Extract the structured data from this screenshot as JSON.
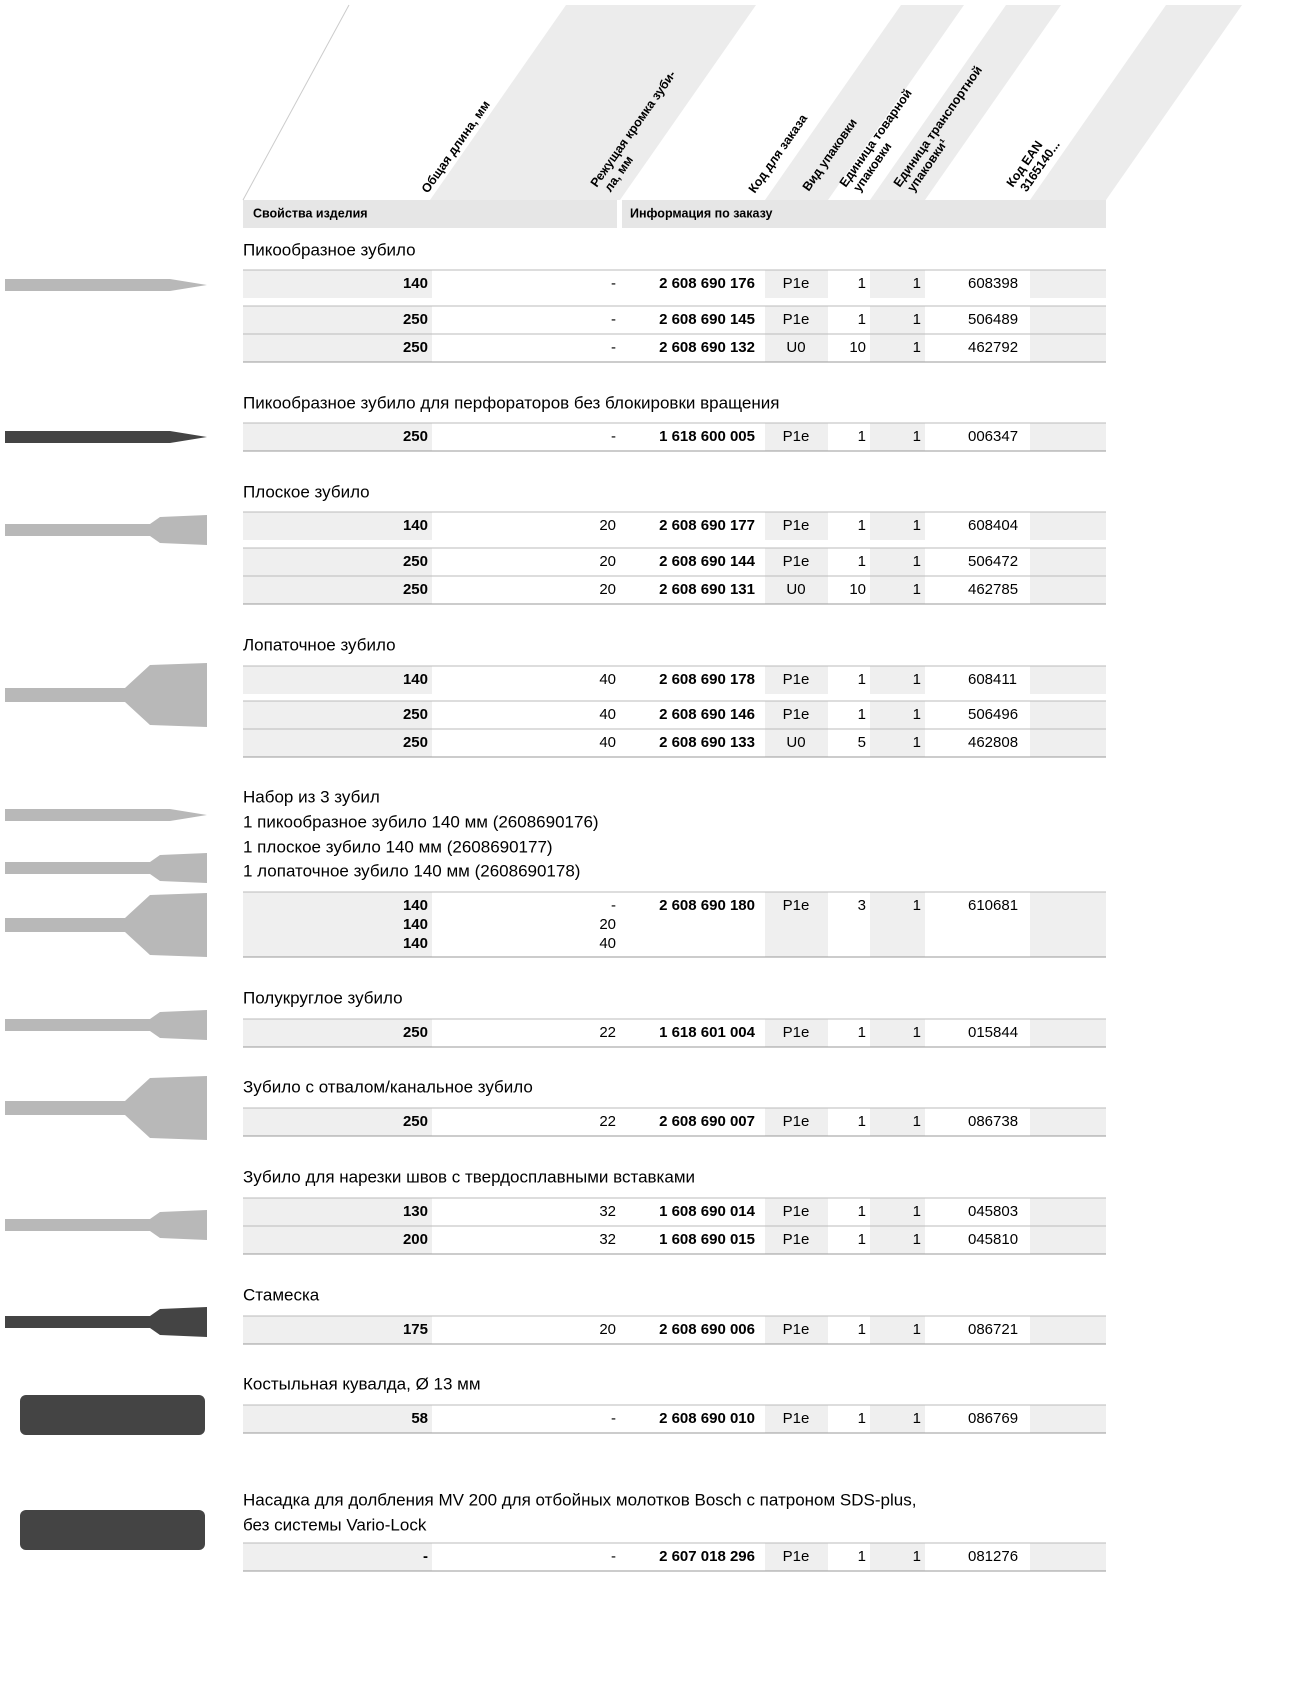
{
  "header": {
    "columns": [
      [
        "Общая длина, мм"
      ],
      [
        "Режущая кромка зуби-",
        "ла, мм"
      ],
      [
        "Код для заказа"
      ],
      [
        "Вид упаковки"
      ],
      [
        "Единица товарной",
        "упаковки"
      ],
      [
        "Единица транспортной",
        "упаковки¹"
      ],
      [
        "Код EAN",
        "3165140..."
      ]
    ],
    "sections": [
      "Свойства изделия",
      "Информация по заказу"
    ]
  },
  "groups": [
    {
      "title": [
        "Пикообразное зубило"
      ],
      "rows": [
        [
          "140",
          "-",
          "2 608 690 176",
          "P1e",
          "1",
          "1",
          "608398"
        ],
        [
          "250",
          "-",
          "2 608 690 145",
          "P1e",
          "1",
          "1",
          "506489"
        ],
        [
          "250",
          "-",
          "2 608 690 132",
          "U0",
          "10",
          "1",
          "462792"
        ]
      ]
    },
    {
      "title": [
        "Пикообразное зубило для перфораторов без блокировки вращения"
      ],
      "rows": [
        [
          "250",
          "-",
          "1 618 600 005",
          "P1e",
          "1",
          "1",
          "006347"
        ]
      ]
    },
    {
      "title": [
        "Плоское зубило"
      ],
      "rows": [
        [
          "140",
          "20",
          "2 608 690 177",
          "P1e",
          "1",
          "1",
          "608404"
        ],
        [
          "250",
          "20",
          "2 608 690 144",
          "P1e",
          "1",
          "1",
          "506472"
        ],
        [
          "250",
          "20",
          "2 608 690 131",
          "U0",
          "10",
          "1",
          "462785"
        ]
      ]
    },
    {
      "title": [
        "Лопаточное зубило"
      ],
      "rows": [
        [
          "140",
          "40",
          "2 608 690 178",
          "P1e",
          "1",
          "1",
          "608411"
        ],
        [
          "250",
          "40",
          "2 608 690 146",
          "P1e",
          "1",
          "1",
          "506496"
        ],
        [
          "250",
          "40",
          "2 608 690 133",
          "U0",
          "5",
          "1",
          "462808"
        ]
      ]
    },
    {
      "title": [
        "Набор из 3 зубил",
        "1 пикообразное зубило 140 мм (2608690176)",
        "1 плоское зубило 140 мм (2608690177)",
        "1 лопаточное зубило 140 мм (2608690178)"
      ],
      "rows": [
        [
          [
            "140",
            "140",
            "140"
          ],
          [
            "-",
            "20",
            "40"
          ],
          "2 608 690 180",
          "P1e",
          "3",
          "1",
          "610681"
        ]
      ]
    },
    {
      "title": [
        "Полукруглое зубило"
      ],
      "rows": [
        [
          "250",
          "22",
          "1 618 601 004",
          "P1e",
          "1",
          "1",
          "015844"
        ]
      ]
    },
    {
      "title": [
        "Зубило с отвалом/канальное зубило"
      ],
      "rows": [
        [
          "250",
          "22",
          "2 608 690 007",
          "P1e",
          "1",
          "1",
          "086738"
        ]
      ]
    },
    {
      "title": [
        "Зубило для нарезки швов с твердосплавными вставками"
      ],
      "rows": [
        [
          "130",
          "32",
          "1 608 690 014",
          "P1e",
          "1",
          "1",
          "045803"
        ],
        [
          "200",
          "32",
          "1 608 690 015",
          "P1e",
          "1",
          "1",
          "045810"
        ]
      ]
    },
    {
      "title": [
        "Стамеска"
      ],
      "rows": [
        [
          "175",
          "20",
          "2 608 690 006",
          "P1e",
          "1",
          "1",
          "086721"
        ]
      ]
    },
    {
      "title": [
        "Костыльная кувалда, Ø 13 мм"
      ],
      "rows": [
        [
          "58",
          "-",
          "2 608 690 010",
          "P1e",
          "1",
          "1",
          "086769"
        ]
      ]
    },
    {
      "title": [
        "Насадка для долбления MV 200 для отбойных молотков Bosch с патроном SDS-plus,",
        "без системы Vario-Lock"
      ],
      "rows": [
        [
          "-",
          "-",
          "2 607 018 296",
          "P1e",
          "1",
          "1",
          "081276"
        ]
      ]
    }
  ]
}
